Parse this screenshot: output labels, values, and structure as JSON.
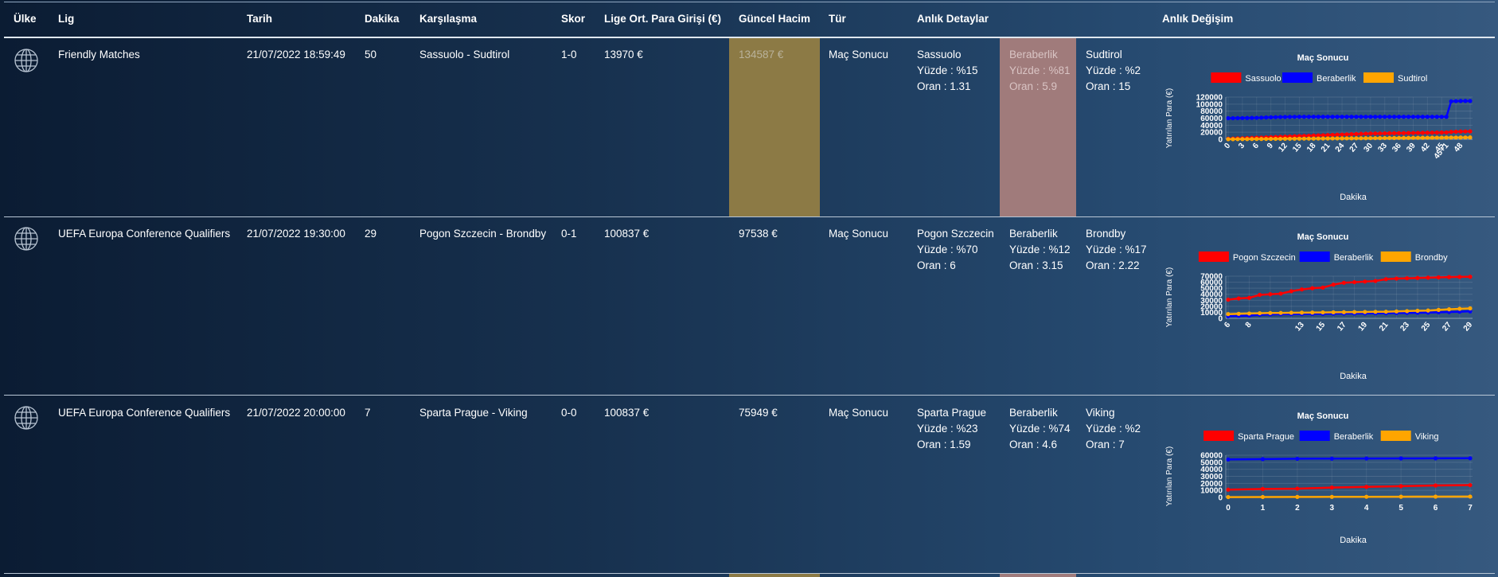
{
  "headers": {
    "ulke": "Ülke",
    "lig": "Lig",
    "tarih": "Tarih",
    "dakika": "Dakika",
    "karsilasma": "Karşılaşma",
    "skor": "Skor",
    "lige_ort": "Lige Ort. Para Girişi (€)",
    "guncel_hacim": "Güncel Hacim",
    "tur": "Tür",
    "anlik_detaylar": "Anlık Detaylar",
    "anlik_degisim": "Anlık Değişim"
  },
  "rows": [
    {
      "country_icon": "globe-icon",
      "league": "Friendly Matches",
      "date": "21/07/2022 18:59:49",
      "minute": "50",
      "match": "Sassuolo - Sudtirol",
      "score": "1-0",
      "league_avg": "13970 €",
      "volume": "134587 €",
      "volume_highlight": true,
      "type": "Maç Sonucu",
      "home": {
        "name": "Sassuolo",
        "pct": "Yüzde : %15",
        "odds": "Oran : 1.31"
      },
      "draw": {
        "name": "Beraberlik",
        "pct": "Yüzde : %81",
        "odds": "Oran : 5.9",
        "highlight": true
      },
      "away": {
        "name": "Sudtirol",
        "pct": "Yüzde : %2",
        "odds": "Oran : 15"
      }
    },
    {
      "country_icon": "globe-icon",
      "league": "UEFA Europa Conference Qualifiers",
      "date": "21/07/2022 19:30:00",
      "minute": "29",
      "match": "Pogon Szczecin - Brondby",
      "score": "0-1",
      "league_avg": "100837 €",
      "volume": "97538 €",
      "volume_highlight": false,
      "type": "Maç Sonucu",
      "home": {
        "name": "Pogon Szczecin",
        "pct": "Yüzde : %70",
        "odds": "Oran : 6"
      },
      "draw": {
        "name": "Beraberlik",
        "pct": "Yüzde : %12",
        "odds": "Oran : 3.15",
        "highlight": false
      },
      "away": {
        "name": "Brondby",
        "pct": "Yüzde : %17",
        "odds": "Oran : 2.22"
      }
    },
    {
      "country_icon": "globe-icon",
      "league": "UEFA Europa Conference Qualifiers",
      "date": "21/07/2022 20:00:00",
      "minute": "7",
      "match": "Sparta Prague - Viking",
      "score": "0-0",
      "league_avg": "100837 €",
      "volume": "75949 €",
      "volume_highlight": false,
      "type": "Maç Sonucu",
      "home": {
        "name": "Sparta Prague",
        "pct": "Yüzde : %23",
        "odds": "Oran : 1.59"
      },
      "draw": {
        "name": "Beraberlik",
        "pct": "Yüzde : %74",
        "odds": "Oran : 4.6",
        "highlight": false
      },
      "away": {
        "name": "Viking",
        "pct": "Yüzde : %2",
        "odds": "Oran : 7"
      }
    }
  ],
  "colors": {
    "home": "#ff0000",
    "draw": "#0000ff",
    "away": "#ffa500",
    "volume_highlight": "#8c7a45",
    "draw_highlight": "#a07b7b"
  },
  "chart_data": [
    {
      "type": "line",
      "title": "Maç Sonucu",
      "xlabel": "Dakika",
      "ylabel": "Yatırılan Para (€)",
      "legend_position": "top",
      "x": [
        "0",
        "1",
        "2",
        "3",
        "4",
        "5",
        "6",
        "7",
        "8",
        "9",
        "10",
        "11",
        "12",
        "13",
        "14",
        "15",
        "16",
        "17",
        "18",
        "19",
        "20",
        "21",
        "22",
        "23",
        "24",
        "25",
        "26",
        "27",
        "28",
        "29",
        "30",
        "31",
        "32",
        "33",
        "34",
        "35",
        "36",
        "37",
        "38",
        "39",
        "40",
        "41",
        "42",
        "43",
        "44",
        "45",
        "45+1",
        "46",
        "47",
        "48",
        "49",
        "50"
      ],
      "tick_labels": [
        "0",
        "3",
        "6",
        "9",
        "12",
        "15",
        "18",
        "21",
        "24",
        "27",
        "30",
        "33",
        "36",
        "39",
        "42",
        "45+1",
        "45",
        "48"
      ],
      "yticks": [
        0,
        20000,
        40000,
        60000,
        80000,
        100000,
        120000
      ],
      "ylim": [
        0,
        120000
      ],
      "series": [
        {
          "name": "Sassuolo",
          "values": [
            1500,
            2000,
            2500,
            3000,
            3500,
            4000,
            4500,
            5000,
            5500,
            6000,
            6500,
            7000,
            7500,
            8000,
            8500,
            9000,
            9500,
            10000,
            10500,
            11000,
            11500,
            12000,
            12500,
            13000,
            13500,
            14000,
            14500,
            15000,
            15500,
            16000,
            16200,
            16400,
            16600,
            16800,
            17000,
            17200,
            17400,
            17600,
            17800,
            18000,
            18200,
            18400,
            18600,
            18800,
            19000,
            19200,
            19400,
            21000,
            21500,
            22000,
            22200,
            22500
          ]
        },
        {
          "name": "Beraberlik",
          "values": [
            60000,
            60000,
            60200,
            60400,
            60600,
            60800,
            61000,
            61500,
            62000,
            62500,
            63000,
            63200,
            63400,
            63600,
            63800,
            64000,
            64000,
            64000,
            64000,
            64000,
            64000,
            64000,
            64000,
            64000,
            64000,
            64000,
            64000,
            64000,
            64000,
            64000,
            64000,
            64000,
            64000,
            64000,
            64000,
            64000,
            64000,
            64000,
            64000,
            64000,
            64000,
            64000,
            64000,
            64000,
            64000,
            64000,
            64000,
            108000,
            108500,
            109000,
            109000,
            109000
          ]
        },
        {
          "name": "Sudtirol",
          "values": [
            200,
            300,
            400,
            500,
            600,
            700,
            800,
            900,
            1000,
            1100,
            1200,
            1300,
            1400,
            1500,
            1600,
            1700,
            1800,
            1900,
            2000,
            2100,
            2200,
            2300,
            2400,
            2500,
            2600,
            2700,
            2800,
            2900,
            3000,
            3100,
            3200,
            3300,
            3400,
            3500,
            3600,
            3700,
            3800,
            3900,
            4000,
            4100,
            4200,
            4300,
            4400,
            4500,
            4600,
            4700,
            4800,
            4900,
            5000,
            5100,
            5200,
            5300
          ]
        }
      ]
    },
    {
      "type": "line",
      "title": "Maç Sonucu",
      "xlabel": "Dakika",
      "ylabel": "Yatırılan Para (€)",
      "legend_position": "top",
      "x": [
        "6",
        "7",
        "8",
        "9",
        "10",
        "11",
        "12",
        "13",
        "14",
        "15",
        "16",
        "17",
        "18",
        "19",
        "20",
        "21",
        "22",
        "23",
        "24",
        "25",
        "26",
        "27",
        "28",
        "29"
      ],
      "tick_labels": [
        "6",
        "8",
        "13",
        "15",
        "17",
        "19",
        "21",
        "23",
        "25",
        "27",
        "29"
      ],
      "yticks": [
        0,
        10000,
        20000,
        30000,
        40000,
        50000,
        60000,
        70000
      ],
      "ylim": [
        0,
        70000
      ],
      "series": [
        {
          "name": "Pogon Szczecin",
          "values": [
            31000,
            33000,
            34000,
            39000,
            40000,
            41000,
            45000,
            48000,
            50000,
            51000,
            56000,
            59000,
            60000,
            61000,
            62000,
            65000,
            66000,
            66500,
            67000,
            67500,
            68000,
            68500,
            68800,
            69000
          ]
        },
        {
          "name": "Beraberlik",
          "values": [
            3500,
            4000,
            4500,
            6000,
            6500,
            7000,
            7000,
            7200,
            7400,
            7600,
            7800,
            8000,
            8000,
            8200,
            8400,
            8600,
            8800,
            9000,
            9200,
            9500,
            10000,
            10500,
            11000,
            11500
          ]
        },
        {
          "name": "Brondby",
          "values": [
            7000,
            7500,
            8000,
            8500,
            8800,
            9000,
            9200,
            9400,
            9600,
            9800,
            10000,
            10200,
            10400,
            10600,
            10800,
            11000,
            11500,
            12000,
            12500,
            13000,
            14000,
            15000,
            15800,
            16500
          ]
        }
      ]
    },
    {
      "type": "line",
      "title": "Maç Sonucu",
      "xlabel": "Dakika",
      "ylabel": "Yatırılan Para (€)",
      "legend_position": "top",
      "x": [
        "0",
        "1",
        "2",
        "3",
        "4",
        "5",
        "6",
        "7"
      ],
      "tick_labels": [
        "0",
        "1",
        "2",
        "3",
        "4",
        "5",
        "6",
        "7"
      ],
      "yticks": [
        0,
        10000,
        20000,
        30000,
        40000,
        50000,
        60000
      ],
      "ylim": [
        0,
        60000
      ],
      "series": [
        {
          "name": "Sparta Prague",
          "values": [
            11000,
            12000,
            12500,
            14000,
            15000,
            16000,
            17000,
            17500
          ]
        },
        {
          "name": "Beraberlik",
          "values": [
            54000,
            54500,
            55000,
            55200,
            55400,
            55500,
            55600,
            55700
          ]
        },
        {
          "name": "Viking",
          "values": [
            500,
            600,
            700,
            800,
            900,
            1000,
            1100,
            1200
          ]
        }
      ]
    }
  ]
}
